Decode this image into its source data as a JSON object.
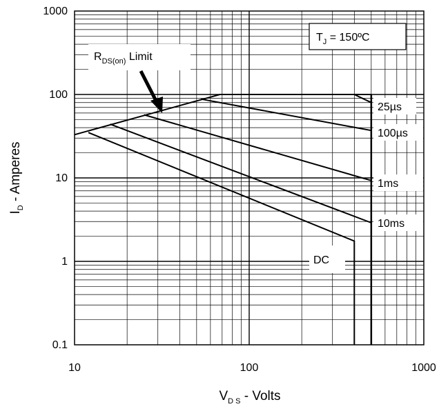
{
  "chart_data": {
    "type": "line",
    "x_scale": "log",
    "y_scale": "log",
    "xlim": [
      10,
      1000
    ],
    "ylim": [
      0.1,
      1000
    ],
    "grid": true,
    "x_ticks": [
      "10",
      "100",
      "1000"
    ],
    "x_tick_values": [
      10,
      100,
      1000
    ],
    "y_ticks": [
      "1000",
      "100",
      "10",
      "1",
      "0.1"
    ],
    "y_tick_values": [
      1000,
      100,
      10,
      1,
      0.1
    ],
    "xlabel": {
      "main": "V",
      "sub": "D S",
      "rest": " - Volts"
    },
    "ylabel": {
      "main": "I",
      "sub": "D",
      "rest": " - Amperes"
    },
    "annotation_temp": {
      "main": "T",
      "sub": "J",
      "rest": " = 150ºC"
    },
    "annotation_rds": {
      "main": "R",
      "sub": "DS(on)",
      "rest": " Limit"
    },
    "limit_line": [
      [
        10,
        33
      ],
      [
        68,
        100
      ],
      [
        500,
        100
      ]
    ],
    "series": [
      {
        "name": "25µs",
        "points": [
          [
            68,
            100
          ],
          [
            400,
            100
          ],
          [
            500,
            80
          ]
        ]
      },
      {
        "name": "100µs",
        "points": [
          [
            53,
            88
          ],
          [
            500,
            37
          ]
        ]
      },
      {
        "name": "1ms",
        "points": [
          [
            25,
            57
          ],
          [
            500,
            9.3
          ]
        ]
      },
      {
        "name": "10ms",
        "points": [
          [
            16,
            44
          ],
          [
            500,
            2.9
          ]
        ]
      },
      {
        "name": "DC",
        "points": [
          [
            12,
            35
          ],
          [
            400,
            1.75
          ],
          [
            400,
            0.1
          ]
        ]
      }
    ],
    "vertical_limit": {
      "x": 500,
      "y_from": 100,
      "y_to": 0.1
    }
  }
}
